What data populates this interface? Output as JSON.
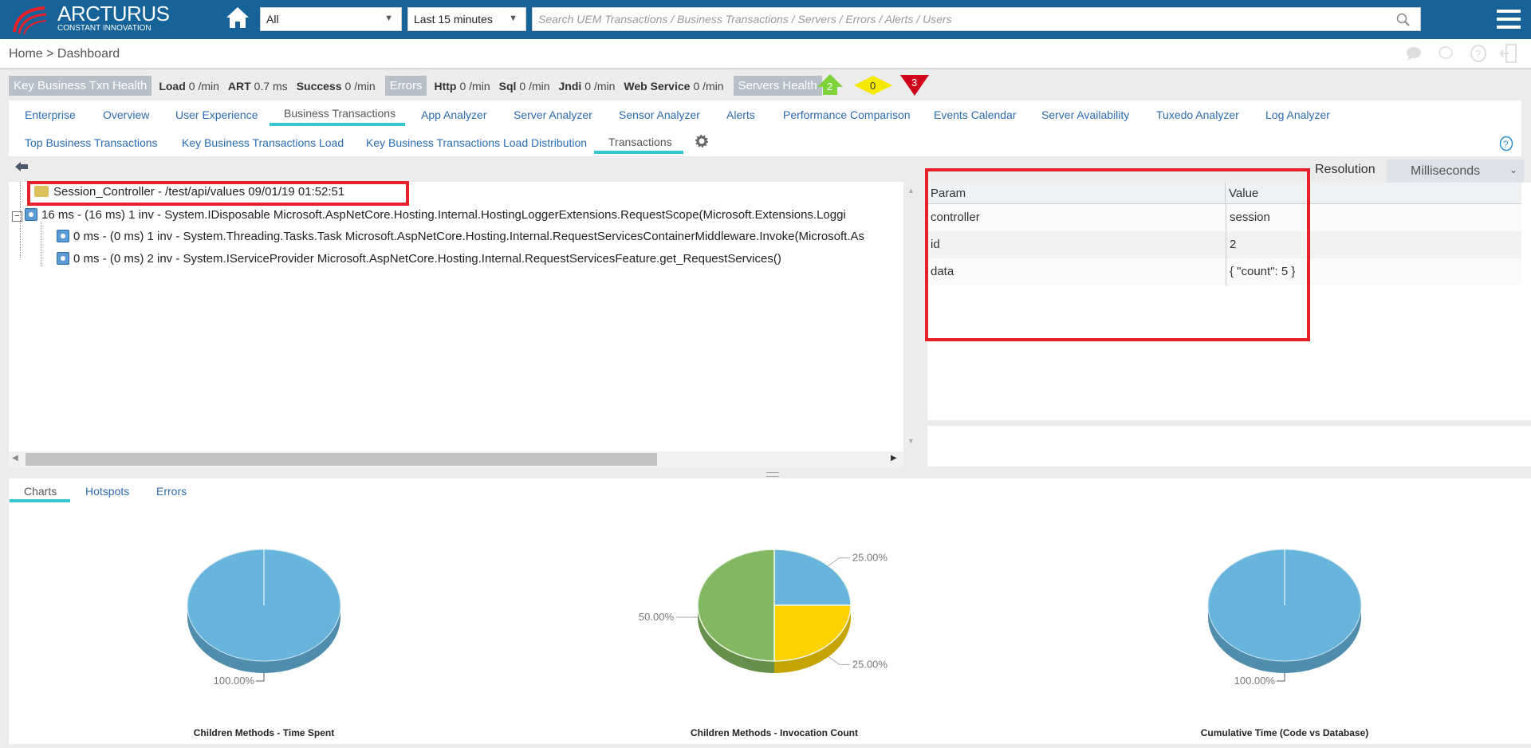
{
  "header": {
    "logo_name": "ARCTURUS",
    "logo_tagline": "CONSTANT INNOVATION",
    "scope_select": "All",
    "time_select": "Last 15 minutes",
    "search_placeholder": "Search UEM Transactions / Business Transactions / Servers / Errors / Alerts / Users"
  },
  "breadcrumb": "Home > Dashboard",
  "health": {
    "key_label": "Key Business Txn Health",
    "load_label": "Load",
    "load_value": "0 /min",
    "art_label": "ART",
    "art_value": "0.7 ms",
    "success_label": "Success",
    "success_value": "0 /min",
    "errors_label": "Errors",
    "http_label": "Http",
    "http_value": "0 /min",
    "sql_label": "Sql",
    "sql_value": "0 /min",
    "jndi_label": "Jndi",
    "jndi_value": "0 /min",
    "ws_label": "Web Service",
    "ws_value": "0 /min",
    "servers_label": "Servers Health",
    "badges": [
      {
        "value": "2",
        "color": "#7ed23a"
      },
      {
        "value": "0",
        "color": "#f5e900"
      },
      {
        "value": "3",
        "color": "#d0021b"
      }
    ]
  },
  "nav": {
    "main": [
      "Enterprise",
      "Overview",
      "User Experience",
      "Business Transactions",
      "App Analyzer",
      "Server Analyzer",
      "Sensor Analyzer",
      "Alerts",
      "Performance Comparison",
      "Events Calendar",
      "Server Availability",
      "Tuxedo Analyzer",
      "Log Analyzer"
    ],
    "sub": [
      "Top Business Transactions",
      "Key Business Transactions Load",
      "Key Business Transactions Load Distribution",
      "Transactions"
    ],
    "active_main": "Business Transactions",
    "active_sub": "Transactions"
  },
  "tree": {
    "root": "Session_Controller - /test/api/values 09/01/19 01:52:51",
    "rows": [
      "16 ms - (16 ms) 1 inv - System.IDisposable Microsoft.AspNetCore.Hosting.Internal.HostingLoggerExtensions.RequestScope(Microsoft.Extensions.Loggi",
      "0 ms - (0 ms) 1 inv - System.Threading.Tasks.Task Microsoft.AspNetCore.Hosting.Internal.RequestServicesContainerMiddleware.Invoke(Microsoft.As",
      "0 ms - (0 ms) 2 inv - System.IServiceProvider Microsoft.AspNetCore.Hosting.Internal.RequestServicesFeature.get_RequestServices()"
    ]
  },
  "params": {
    "resolution_label": "Resolution",
    "resolution_value": "Milliseconds",
    "headers": [
      "Param",
      "Value"
    ],
    "rows": [
      [
        "controller",
        "session"
      ],
      [
        "id",
        "2"
      ],
      [
        "data",
        "{ \"count\": 5 }"
      ]
    ]
  },
  "bottom_tabs": [
    "Charts",
    "Hotspots",
    "Errors"
  ],
  "chart_data": [
    {
      "type": "pie",
      "title": "Children Methods - Time Spent",
      "slices": [
        {
          "value": 100,
          "label": "100.00%",
          "color": "#67b5dc"
        }
      ]
    },
    {
      "type": "pie",
      "title": "Children Methods - Invocation Count",
      "slices": [
        {
          "value": 25,
          "label": "25.00%",
          "color": "#67b5dc"
        },
        {
          "value": 25,
          "label": "25.00%",
          "color": "#fcd200"
        },
        {
          "value": 50,
          "label": "50.00%",
          "color": "#84b761"
        }
      ]
    },
    {
      "type": "pie",
      "title": "Cumulative Time (Code vs Database)",
      "slices": [
        {
          "value": 100,
          "label": "100.00%",
          "color": "#67b5dc"
        }
      ]
    }
  ]
}
